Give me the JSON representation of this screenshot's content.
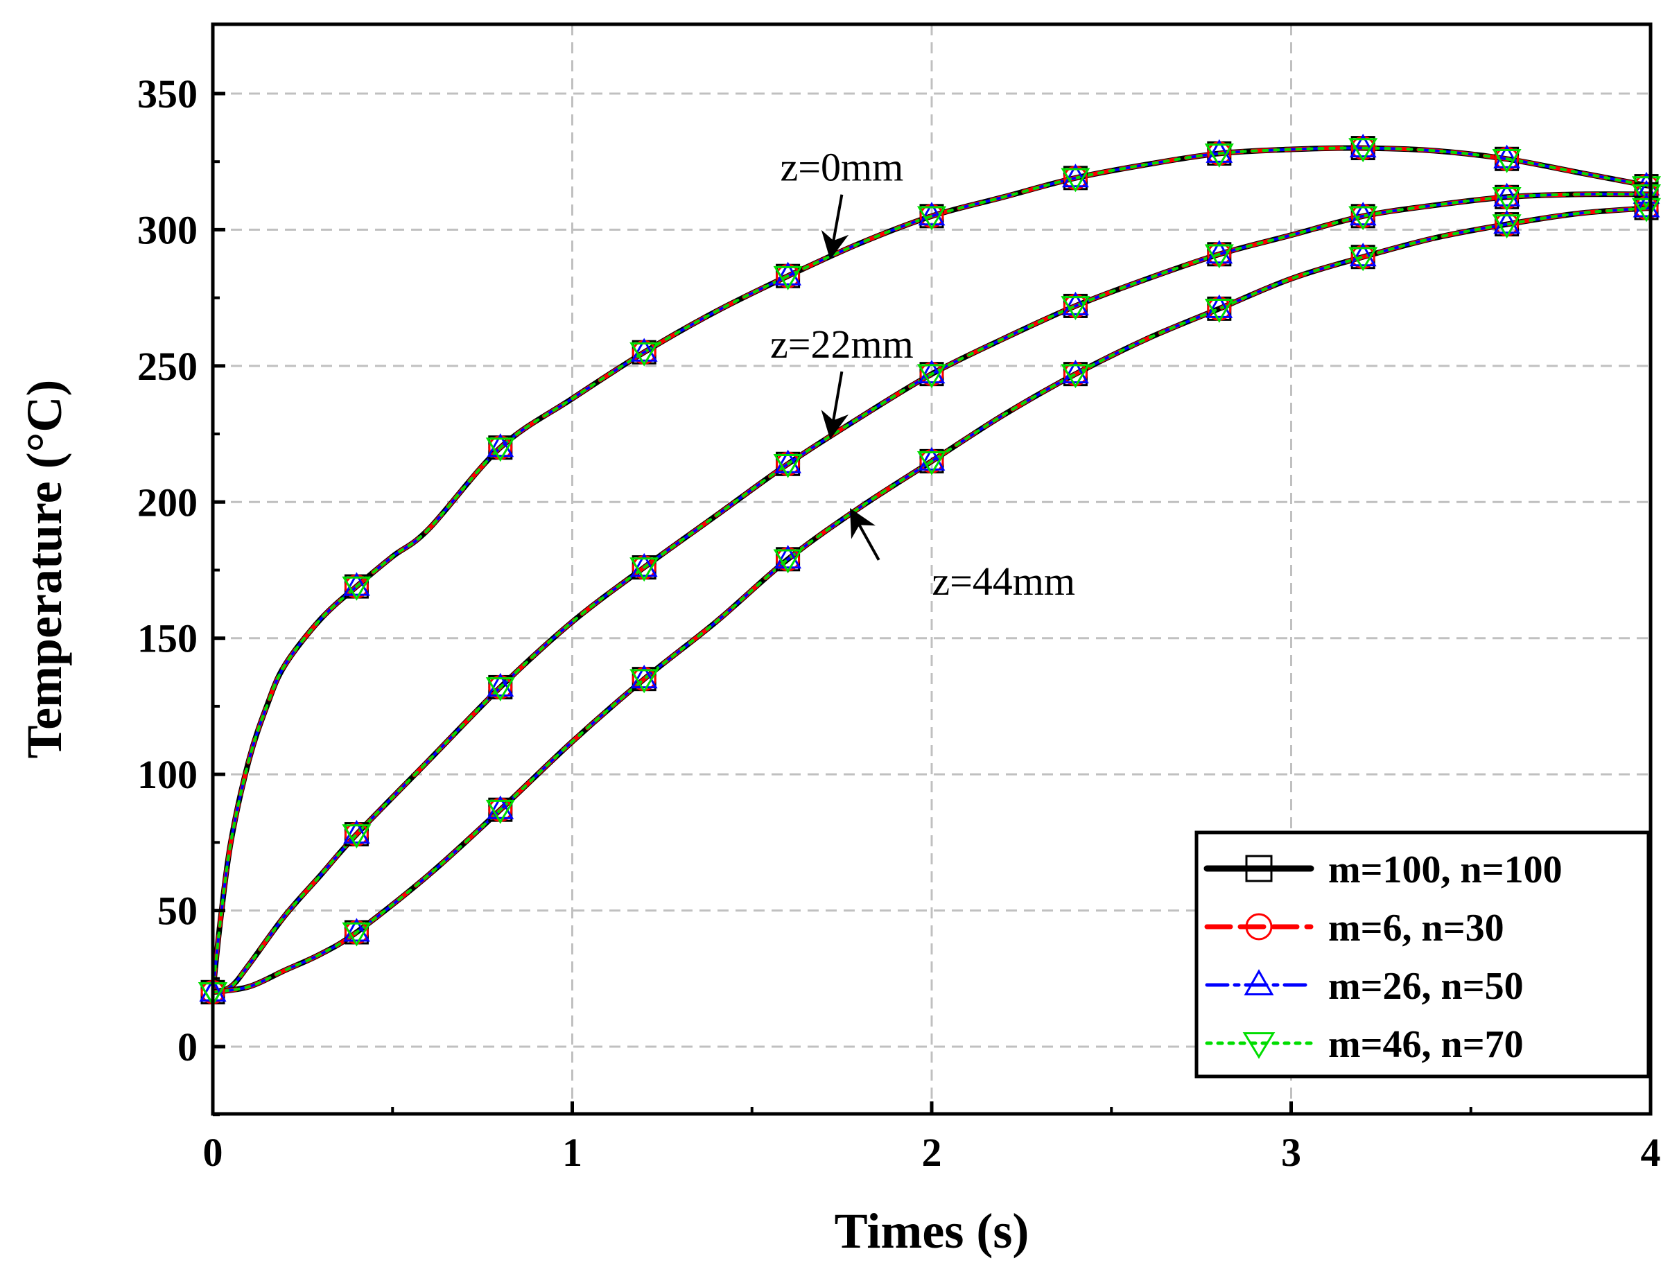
{
  "chart_data": {
    "type": "line",
    "title": "",
    "xlabel": "Times (s)",
    "ylabel": "Temperature (°C)",
    "xlim": [
      0,
      4
    ],
    "ylim": [
      -25,
      375
    ],
    "xticks": [
      0,
      1,
      2,
      3,
      4
    ],
    "xtick_labels": [
      "0",
      "1",
      "2",
      "3",
      "4"
    ],
    "yticks": [
      0,
      50,
      100,
      150,
      200,
      250,
      300,
      350
    ],
    "ytick_labels": [
      "0",
      "50",
      "100",
      "150",
      "200",
      "250",
      "300",
      "350"
    ],
    "x_minor_ticks": [
      0.5,
      1.5,
      2.5,
      3.5
    ],
    "y_minor_ticks": [
      -25,
      25,
      75,
      125,
      175,
      225,
      275,
      325
    ],
    "grid": true,
    "legend_position": "bottom-right",
    "marker_x": [
      0,
      0.4,
      0.8,
      1.2,
      1.6,
      2.0,
      2.4,
      2.8,
      3.2,
      3.6,
      4.0
    ],
    "legend": [
      {
        "label": "m=100, n=100",
        "color": "#000000",
        "marker": "square",
        "dash": "solid"
      },
      {
        "label": "m=6, n=30",
        "color": "#ff0000",
        "marker": "circle",
        "dash": "dash"
      },
      {
        "label": "m=26, n=50",
        "color": "#0000ff",
        "marker": "triangle-up",
        "dash": "dashdot"
      },
      {
        "label": "m=46, n=70",
        "color": "#00dd00",
        "marker": "triangle-down",
        "dash": "dot"
      }
    ],
    "curves": [
      {
        "name": "z=0mm",
        "x": [
          0,
          0.02,
          0.05,
          0.1,
          0.15,
          0.2,
          0.3,
          0.4,
          0.5,
          0.6,
          0.8,
          1.0,
          1.2,
          1.4,
          1.6,
          1.8,
          2.0,
          2.2,
          2.4,
          2.6,
          2.8,
          3.0,
          3.2,
          3.4,
          3.6,
          3.8,
          4.0
        ],
        "y": [
          20,
          45,
          75,
          105,
          125,
          140,
          157,
          169,
          180,
          190,
          220,
          238,
          255,
          270,
          283,
          295,
          305,
          312,
          319,
          324,
          328,
          329.5,
          330,
          329,
          326,
          321,
          316
        ]
      },
      {
        "name": "z=22mm",
        "x": [
          0,
          0.05,
          0.1,
          0.2,
          0.3,
          0.4,
          0.6,
          0.8,
          1.0,
          1.2,
          1.4,
          1.6,
          1.8,
          2.0,
          2.2,
          2.4,
          2.6,
          2.8,
          3.0,
          3.2,
          3.4,
          3.6,
          3.8,
          4.0
        ],
        "y": [
          20,
          22,
          30,
          48,
          63,
          78,
          105,
          132,
          156,
          176,
          195,
          214,
          231,
          247,
          260,
          272,
          282,
          291,
          298,
          305,
          309,
          312,
          313,
          313
        ]
      },
      {
        "name": "z=44mm",
        "x": [
          0,
          0.1,
          0.2,
          0.3,
          0.4,
          0.6,
          0.8,
          1.0,
          1.2,
          1.4,
          1.6,
          1.8,
          2.0,
          2.2,
          2.4,
          2.6,
          2.8,
          3.0,
          3.2,
          3.4,
          3.6,
          3.8,
          4.0
        ],
        "y": [
          20,
          22,
          28,
          34,
          42,
          63,
          87,
          112,
          135,
          156,
          179,
          198,
          215,
          232,
          247,
          260,
          271,
          282,
          290,
          297,
          302,
          306,
          308
        ]
      }
    ],
    "annotations": [
      {
        "text": "z=0mm",
        "text_x": 1.75,
        "text_y": 318,
        "arrow_to_x": 1.72,
        "arrow_to_y": 291
      },
      {
        "text": "z=22mm",
        "text_x": 1.75,
        "text_y": 253,
        "arrow_to_x": 1.72,
        "arrow_to_y": 225
      },
      {
        "text": "z=44mm",
        "text_x": 2.2,
        "text_y": 166,
        "arrow_to_x": 1.78,
        "arrow_to_y": 196
      }
    ]
  }
}
